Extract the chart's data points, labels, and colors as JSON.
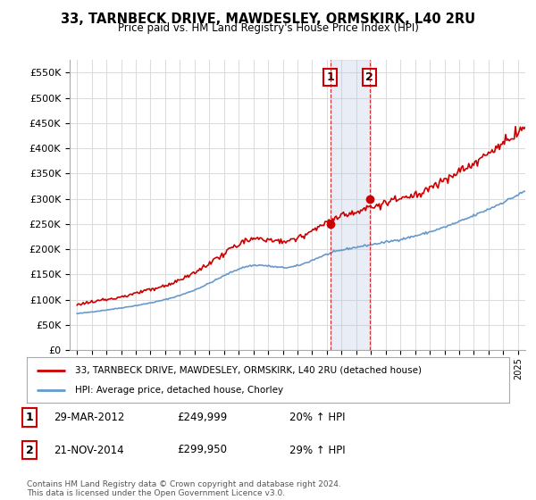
{
  "title": "33, TARNBECK DRIVE, MAWDESLEY, ORMSKIRK, L40 2RU",
  "subtitle": "Price paid vs. HM Land Registry's House Price Index (HPI)",
  "legend_line1": "33, TARNBECK DRIVE, MAWDESLEY, ORMSKIRK, L40 2RU (detached house)",
  "legend_line2": "HPI: Average price, detached house, Chorley",
  "footer": "Contains HM Land Registry data © Crown copyright and database right 2024.\nThis data is licensed under the Open Government Licence v3.0.",
  "annotation1_label": "1",
  "annotation1_date": "29-MAR-2012",
  "annotation1_price": "£249,999",
  "annotation1_hpi": "20% ↑ HPI",
  "annotation2_label": "2",
  "annotation2_date": "21-NOV-2014",
  "annotation2_price": "£299,950",
  "annotation2_hpi": "29% ↑ HPI",
  "sale1_x": 2012.24,
  "sale1_y": 249999,
  "sale2_x": 2014.9,
  "sale2_y": 299950,
  "vline1_x": 2012.24,
  "vline2_x": 2014.9,
  "ylim": [
    0,
    575000
  ],
  "xlim": [
    1994.5,
    2025.5
  ],
  "hpi_color": "#6699cc",
  "price_color": "#cc0000",
  "vline_color": "#cc0000",
  "shade_color": "#aabbdd",
  "grid_color": "#dddddd",
  "background_color": "#ffffff"
}
